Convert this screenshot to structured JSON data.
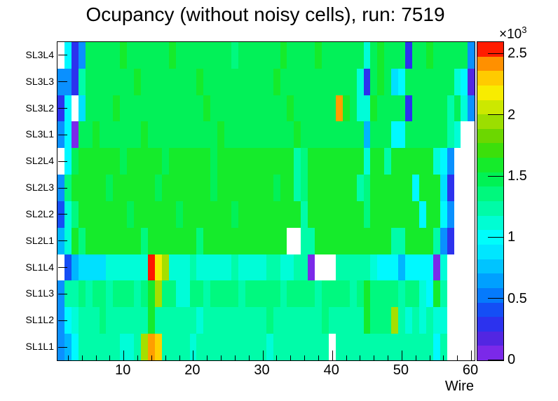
{
  "title": "Ocupancy (without noisy cells), run: 7519",
  "x_axis": {
    "label": "Wire",
    "major_ticks": [
      10,
      20,
      30,
      40,
      50,
      60
    ],
    "major_tick_labels": [
      "10",
      "20",
      "30",
      "40",
      "50",
      "60"
    ],
    "minor_tick_step": 2,
    "range": [
      0.5,
      60.5
    ]
  },
  "y_axis": {
    "labels_top_to_bottom": [
      "SL3L4",
      "SL3L3",
      "SL3L2",
      "SL3L1",
      "SL2L4",
      "SL2L3",
      "SL2L2",
      "SL2L1",
      "SL1L4",
      "SL1L3",
      "SL1L2",
      "SL1L1"
    ]
  },
  "colorbar": {
    "exponent_base": "×10",
    "exponent_power": "3",
    "tick_values": [
      0,
      0.5,
      1,
      1.5,
      2,
      2.5
    ],
    "tick_labels": [
      "0",
      "0.5",
      "1",
      "1.5",
      "2",
      "2.5"
    ],
    "z_max": 2.6,
    "bands_bottom_to_top": [
      "#7b29e9",
      "#5226e2",
      "#2c32ee",
      "#144ef5",
      "#057afc",
      "#00a0ff",
      "#00c4ff",
      "#00e6ff",
      "#00fdfb",
      "#00fdd3",
      "#00fba7",
      "#00f87d",
      "#00f254",
      "#15eb2b",
      "#3cdf0b",
      "#6cd700",
      "#9cde00",
      "#cce800",
      "#f8ec00",
      "#ffcb00",
      "#ff9000",
      "#ff1c00"
    ]
  },
  "chart_data": {
    "type": "heatmap",
    "title": "Ocupancy (without noisy cells), run: 7519",
    "xlabel": "Wire",
    "ylabel": "",
    "x_range": [
      1,
      60
    ],
    "grid": false,
    "legend_position": "right-colorbar",
    "z_scale_exponent": "×10³",
    "z_max_counts": 2600,
    "rows_top_to_bottom": [
      "SL3L4",
      "SL3L3",
      "SL3L2",
      "SL3L1",
      "SL2L4",
      "SL2L3",
      "SL2L2",
      "SL2L1",
      "SL1L4",
      "SL1L3",
      "SL1L2",
      "SL1L1"
    ],
    "palette_colors": {
      "W": "#ffffff",
      "P": "#7b29e9",
      "I": "#5226e2",
      "B": "#2c32ee",
      "b": "#144ef5",
      "A": "#0a90ff",
      "L": "#00b6ff",
      "C": "#00e0ff",
      "c": "#00f9ff",
      "Q": "#00fdd8",
      "S": "#00fca9",
      "s": "#00f97f",
      "G": "#02f158",
      "g": "#15eb2b",
      "F": "#3cdf0b",
      "y": "#a5df00",
      "Y": "#f5ec00",
      "d": "#ffd000",
      "O": "#ff9e00",
      "R": "#ff1400"
    },
    "palette_values_approx_counts": {
      "W": null,
      "P": 60,
      "I": 180,
      "B": 300,
      "b": 415,
      "A": 590,
      "L": 700,
      "C": 890,
      "c": 1005,
      "Q": 1125,
      "S": 1240,
      "s": 1360,
      "G": 1480,
      "g": 1595,
      "F": 1715,
      "y": 1950,
      "Y": 2185,
      "d": 2305,
      "O": 2425,
      "R": 2545
    },
    "cells_by_row_top_to_bottom": [
      {
        "label": "SL3L4",
        "cells": "WcBAGGGGGgGGGGGGgGGGGGGGGsGGGGGGgGGGGgGGGGGGQGgGGGBGGgGGGGGA"
      },
      {
        "label": "SL3L3",
        "cells": "AABSGGGGGGGgGGGGGGGGgGGGGGGGGGGgGGGGGGGGGGGQBGgGCcGGGGGGGQcI"
      },
      {
        "label": "SL3L2",
        "cells": "BcWCGGGGgGGGGGGGGGGGGgGGGGGGGGGGGgGGGGGGOgGQQgGGGGBGGGGGSGQA"
      },
      {
        "label": "SL3L1",
        "cells": "AcPGGgGGGGGGgGGGGGGGGGGgGGGGGGGGGGgGGGGGGGGGLGGGccGGGGGGSQWW"
      },
      {
        "label": "SL2L4",
        "cells": "WcGggggggGgggggGggggggGgggggggggggSsggggggggQggSggggggQcAWWW"
      },
      {
        "label": "SL2L3",
        "cells": "AsgggggGggggggGgggggggGggggggggGggSsgggggggSsgggggXcgggCBWWW"
      },
      {
        "label": "SL2L2",
        "cells": "bQsgggggggGggggggGgggggggGgggggggggSggggggggsgggggggcggcAWWW"
      },
      {
        "label": "SL2L1",
        "cells": "LQgsggggggggsgggggggsggggggggggggWWSSgggggggggggSSggggSABWWW"
      },
      {
        "label": "SL1L4",
        "cells": "WbLCCCCQQQQQQRYyQQQSQQQQQSQQQQSSQQSSPWWWSSSSSQcccLccccPQWWWW"
      },
      {
        "label": "SL1L3",
        "cells": "ASSsSssSsssSsgyssQQssSssssSsssssSssssSssssSsgssssSssQcgSWWWW"
      },
      {
        "label": "SL1L2",
        "cells": "AcQSSSsSSSSSSgSSSSSSQSSSSSSSSSsSSSSSSSsSSSSSgsssySQSQSQQWWWW"
      },
      {
        "label": "SL1L1",
        "cells": "ALcSSSSSSQQSyOdSSSSQSSSSSSSSSSQSSSSSSSSWSSSSSSSSSSSSSScSWWWW"
      }
    ],
    "notable_cells": [
      {
        "row": "SL1L4",
        "wire": 14,
        "value_approx": 2550,
        "color": "red"
      },
      {
        "row": "SL1L1",
        "wire": 14,
        "value_approx": 2420,
        "color": "orange"
      },
      {
        "row": "SL3L2",
        "wire": 41,
        "value_approx": 2420,
        "color": "orange"
      },
      {
        "row": "SL1L4",
        "wires": [
          38,
          39,
          40
        ],
        "value": null,
        "color": "white-empty"
      }
    ]
  }
}
